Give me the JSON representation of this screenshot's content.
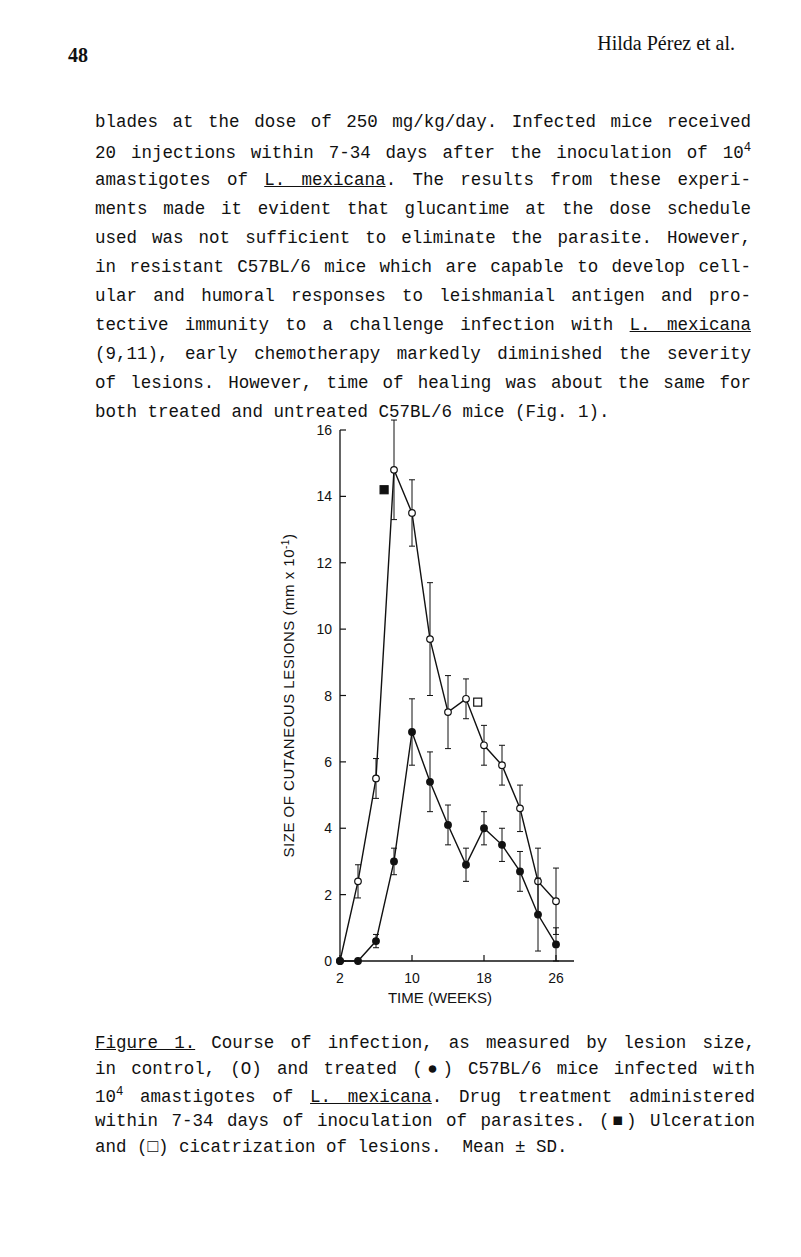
{
  "header": {
    "page_number": "48",
    "author": "Hilda Pérez et al."
  },
  "body": {
    "lines": [
      [
        {
          "text": "blades at the dose of 250 mg/kg/day.  Infected mice received"
        }
      ],
      [
        {
          "text": "20 injections within 7-34 days after the inoculation of 10"
        },
        {
          "text": "4",
          "style": "superscript"
        }
      ],
      [
        {
          "text": "amastigotes of "
        },
        {
          "text": "L. mexicana",
          "style": "underline"
        },
        {
          "text": ".  The results from these experi-"
        }
      ],
      [
        {
          "text": "ments made it evident that glucantime at the dose schedule"
        }
      ],
      [
        {
          "text": "used was not sufficient to eliminate the parasite.  However,"
        }
      ],
      [
        {
          "text": "in resistant C57BL/6 mice which are capable to develop cell-"
        }
      ],
      [
        {
          "text": "ular and humoral responses to leishmanial antigen and pro-"
        }
      ],
      [
        {
          "text": "tective immunity to a challenge infection with "
        },
        {
          "text": "L. mexicana",
          "style": "underline"
        }
      ],
      [
        {
          "text": "(9,11), early chemotherapy markedly diminished the severity"
        }
      ],
      [
        {
          "text": "of lesions.  However, time of healing was about the same for"
        }
      ],
      [
        {
          "text": "both treated and untreated C57BL/6 mice (Fig. 1)."
        }
      ]
    ]
  },
  "chart_data": {
    "type": "line",
    "x_label": "TIME (WEEKS)",
    "y_label": [
      {
        "text": "SIZE OF CUTANEOUS LESIONS (mm x 10"
      },
      {
        "text": "-1",
        "style": "superscript"
      },
      {
        "text": ")"
      }
    ],
    "x": [
      2,
      4,
      6,
      8,
      10,
      12,
      14,
      16,
      18,
      20,
      22,
      24,
      26
    ],
    "series": [
      {
        "color": "#111111",
        "marker": "circle-open",
        "line_style": "solid",
        "values": [
          0,
          2.4,
          5.5,
          14.8,
          13.5,
          9.7,
          7.5,
          7.9,
          6.5,
          5.9,
          4.6,
          2.4,
          1.8
        ],
        "errors": [
          0,
          0.5,
          0.6,
          1.5,
          1.0,
          1.7,
          1.1,
          0.6,
          0.6,
          0.6,
          0.7,
          1.0,
          1.0
        ]
      },
      {
        "color": "#111111",
        "marker": "circle",
        "line_style": "solid",
        "values": [
          0,
          0,
          0.6,
          3.0,
          6.9,
          5.4,
          4.1,
          2.9,
          4.0,
          3.5,
          2.7,
          1.4,
          0.5
        ],
        "errors": [
          0,
          0,
          0.2,
          0.4,
          1.0,
          0.9,
          0.6,
          0.5,
          0.5,
          0.5,
          0.6,
          1.1,
          0.5
        ]
      },
      {
        "type": "scatter",
        "color": "#111111",
        "marker": "square",
        "x": [
          6.9
        ],
        "values": [
          14.2
        ]
      },
      {
        "type": "scatter",
        "color": "#111111",
        "marker": "square-open",
        "x": [
          17.3
        ],
        "values": [
          7.8
        ]
      }
    ],
    "xlim": [
      2,
      28
    ],
    "xticks": [
      2,
      10,
      18,
      26
    ],
    "ylim": [
      0,
      16
    ],
    "yticks": [
      0,
      2,
      4,
      6,
      8,
      10,
      12,
      14,
      16
    ],
    "grid": false
  },
  "caption": {
    "lines": [
      [
        {
          "text": "Figure 1.",
          "style": "underline"
        },
        {
          "text": "  Course of infection, as measured by lesion size,"
        }
      ],
      [
        {
          "text": "in control, (O) and treated (●) C57BL/6 mice infected with"
        }
      ],
      [
        {
          "text": "10"
        },
        {
          "text": "4",
          "style": "superscript"
        },
        {
          "text": " amastigotes of "
        },
        {
          "text": "L. mexicana",
          "style": "underline"
        },
        {
          "text": ".  Drug treatment administered"
        }
      ],
      [
        {
          "text": "within 7-34 days of inoculation of parasites.  (■) Ulceration"
        }
      ],
      [
        {
          "text": "and (□) cicatrization of lesions.  Mean ± SD."
        }
      ]
    ]
  }
}
